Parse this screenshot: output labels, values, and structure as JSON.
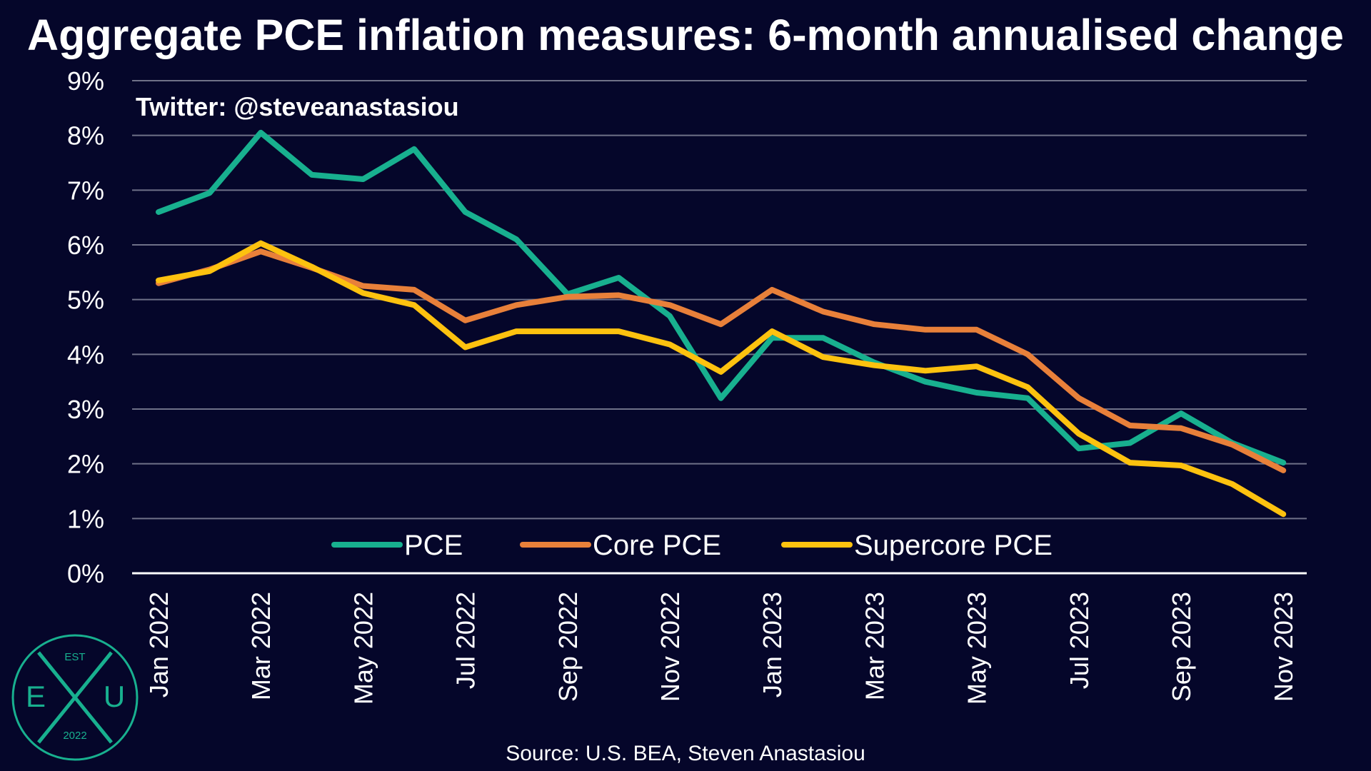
{
  "chart_data": {
    "type": "line",
    "title": "Aggregate PCE inflation measures: 6-month annualised change",
    "ylim": [
      0,
      9
    ],
    "yticks": [
      "0%",
      "1%",
      "2%",
      "3%",
      "4%",
      "5%",
      "6%",
      "7%",
      "8%",
      "9%"
    ],
    "grid": true,
    "legend_position": "bottom-center",
    "x": [
      "Jan 2022",
      "Feb 2022",
      "Mar 2022",
      "Apr 2022",
      "May 2022",
      "Jun 2022",
      "Jul 2022",
      "Aug 2022",
      "Sep 2022",
      "Oct 2022",
      "Nov 2022",
      "Dec 2022",
      "Jan 2023",
      "Feb 2023",
      "Mar 2023",
      "Apr 2023",
      "May 2023",
      "Jun 2023",
      "Jul 2023",
      "Aug 2023",
      "Sep 2023",
      "Oct 2023",
      "Nov 2023"
    ],
    "x_tick_labels": [
      "Jan 2022",
      "Mar 2022",
      "May 2022",
      "Jul 2022",
      "Sep 2022",
      "Nov 2022",
      "Jan 2023",
      "Mar 2023",
      "May 2023",
      "Jul 2023",
      "Sep 2023",
      "Nov 2023"
    ],
    "series": [
      {
        "name": "PCE",
        "color": "#18b08f",
        "values": [
          6.6,
          6.95,
          8.05,
          7.28,
          7.2,
          7.75,
          6.6,
          6.1,
          5.1,
          5.4,
          4.7,
          3.2,
          4.3,
          4.3,
          3.85,
          3.5,
          3.3,
          3.2,
          2.28,
          2.38,
          2.92,
          2.38,
          2.02
        ]
      },
      {
        "name": "Core PCE",
        "color": "#e8803a",
        "values": [
          5.3,
          5.55,
          5.88,
          5.58,
          5.25,
          5.18,
          4.62,
          4.9,
          5.05,
          5.08,
          4.9,
          4.55,
          5.18,
          4.78,
          4.55,
          4.45,
          4.45,
          4.0,
          3.2,
          2.7,
          2.65,
          2.35,
          1.88
        ]
      },
      {
        "name": "Supercore PCE",
        "color": "#fdc20f",
        "values": [
          5.35,
          5.52,
          6.03,
          5.6,
          5.12,
          4.9,
          4.13,
          4.42,
          4.42,
          4.42,
          4.18,
          3.68,
          4.42,
          3.95,
          3.8,
          3.7,
          3.78,
          3.4,
          2.55,
          2.02,
          1.97,
          1.63,
          1.08
        ]
      }
    ]
  },
  "annotations": {
    "credit": "Twitter: @steveanastasiou",
    "source": "Source: U.S. BEA, Steven Anastasiou"
  },
  "logo": {
    "top": "EST",
    "left": "E",
    "middle": "X",
    "right": "U",
    "bottom": "2022",
    "color": "#18b08f"
  }
}
